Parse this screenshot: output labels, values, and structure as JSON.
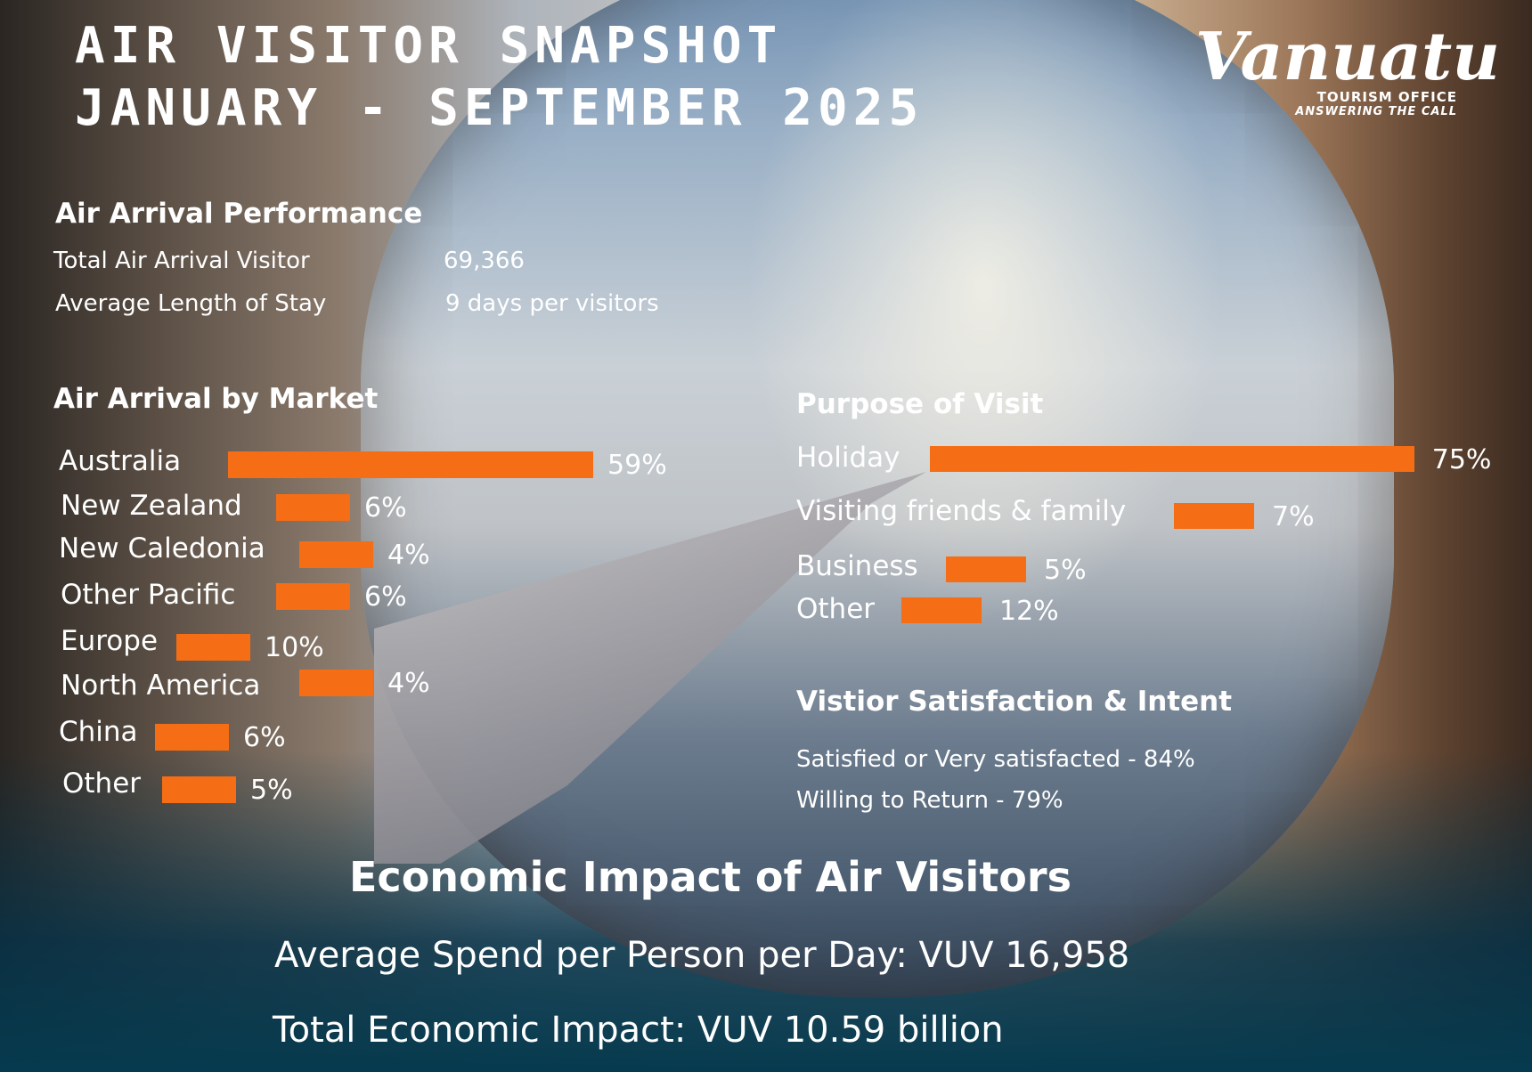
{
  "header": {
    "title_line1": "AIR VISITOR SNAPSHOT",
    "title_line2": "JANUARY - SEPTEMBER 2025"
  },
  "logo": {
    "name": "Vanuatu",
    "line1": "TOURISM OFFICE",
    "line2": "ANSWERING THE CALL"
  },
  "performance": {
    "heading": "Air Arrival Performance",
    "rows": [
      {
        "label": "Total Air Arrival Visitor",
        "value": "69,366"
      },
      {
        "label": "Average Length of Stay",
        "value": "9 days per visitors"
      }
    ]
  },
  "chart_data": [
    {
      "type": "bar",
      "orientation": "horizontal",
      "title": "Air Arrival by Market",
      "categories": [
        "Australia",
        "New Zealand",
        "New Caledonia",
        "Other Pacific",
        "Europe",
        "North America",
        "China",
        "Other"
      ],
      "values": [
        59,
        6,
        4,
        6,
        10,
        4,
        6,
        5
      ],
      "value_labels": [
        "59%",
        "6%",
        "4%",
        "6%",
        "10%",
        "4%",
        "6%",
        "5%"
      ],
      "bar_color": "#f56d14"
    },
    {
      "type": "bar",
      "orientation": "horizontal",
      "title": "Purpose of Visit",
      "categories": [
        "Holiday",
        "Visiting friends & family",
        "Business",
        "Other"
      ],
      "values": [
        75,
        7,
        5,
        12
      ],
      "value_labels": [
        "75%",
        "7%",
        "5%",
        "12%"
      ],
      "bar_color": "#f56d14"
    }
  ],
  "satisfaction": {
    "heading": "Vistior Satisfaction & Intent",
    "lines": [
      "Satisfied or Very satisfacted - 84%",
      "Willing to Return - 79%"
    ]
  },
  "economic": {
    "heading": "Economic Impact of Air Visitors",
    "lines": [
      "Average Spend per Person per Day: VUV 16,958",
      "Total Economic Impact: VUV 10.59 billion"
    ]
  }
}
